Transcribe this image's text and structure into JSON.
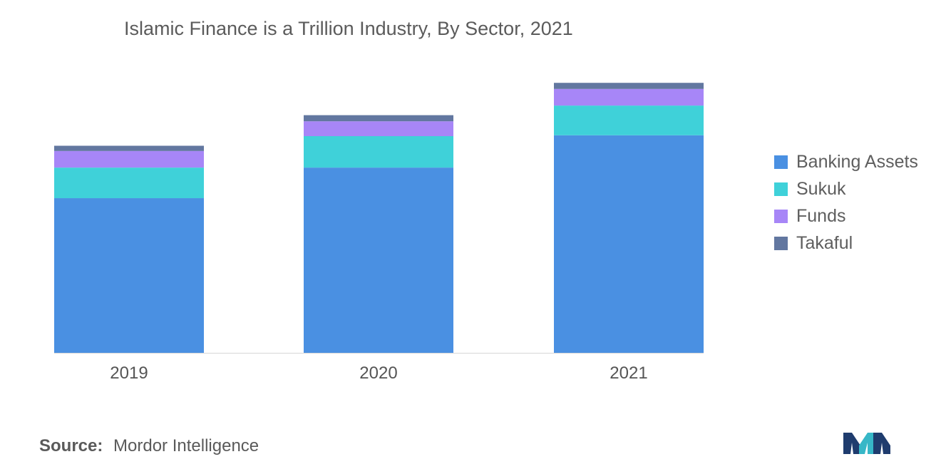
{
  "chart_data": {
    "type": "bar",
    "stacked": true,
    "title": "Islamic Finance is a Trillion Industry, By Sector, 2021",
    "categories": [
      "2019",
      "2020",
      "2021"
    ],
    "series": [
      {
        "name": "Banking Assets",
        "color": "#4a90e2",
        "values": [
          1.77,
          2.12,
          2.49
        ]
      },
      {
        "name": "Sukuk",
        "color": "#3fd1d9",
        "values": [
          0.35,
          0.36,
          0.34
        ]
      },
      {
        "name": "Funds",
        "color": "#a786f7",
        "values": [
          0.19,
          0.17,
          0.19
        ]
      },
      {
        "name": "Takaful",
        "color": "#6277a0",
        "values": [
          0.06,
          0.07,
          0.07
        ]
      }
    ],
    "ylim": [
      0,
      3.1
    ],
    "legend_position": "right",
    "grid": false,
    "axis_line_color": "#d7d7d7"
  },
  "footer": {
    "source_label": "Source:",
    "source_text": "Mordor Intelligence"
  },
  "logo": {
    "icon": "mordor-intelligence-logo",
    "colors": [
      "#1f3c6e",
      "#37b7c7"
    ]
  }
}
